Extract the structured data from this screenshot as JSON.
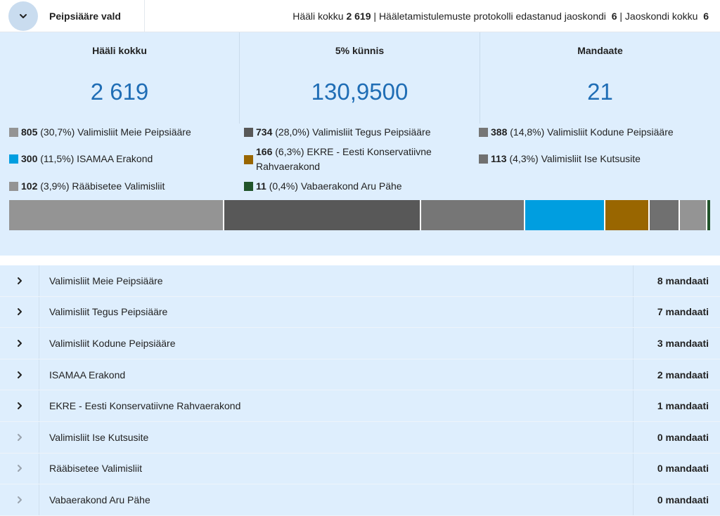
{
  "header": {
    "title": "Peipsiääre vald",
    "votes_label": "Hääli kokku",
    "votes_value": "2 619",
    "protocols_label": "Hääletamistulemuste protokolli edastanud jaoskondi",
    "protocols_value": "6",
    "districts_label": "Jaoskondi kokku",
    "districts_value": "6",
    "sep": "|"
  },
  "kpis": [
    {
      "label": "Hääli kokku",
      "value": "2 619"
    },
    {
      "label": "5% künnis",
      "value": "130,9500"
    },
    {
      "label": "Mandaate",
      "value": "21"
    }
  ],
  "legend": [
    {
      "votes": "805",
      "pct": "(30,7%)",
      "name": "Valimisliit Meie Peipsiääre",
      "color": "#949494"
    },
    {
      "votes": "734",
      "pct": "(28,0%)",
      "name": "Valimisliit Tegus Peipsiääre",
      "color": "#585858"
    },
    {
      "votes": "388",
      "pct": "(14,8%)",
      "name": "Valimisliit Kodune Peipsiääre",
      "color": "#767676"
    },
    {
      "votes": "300",
      "pct": "(11,5%)",
      "name": "ISAMAA Erakond",
      "color": "#009ee0"
    },
    {
      "votes": "166",
      "pct": "(6,3%)",
      "name": "EKRE - Eesti Konservatiivne Rahvaerakond",
      "color": "#996600"
    },
    {
      "votes": "113",
      "pct": "(4,3%)",
      "name": "Valimisliit Ise Kutsusite",
      "color": "#707070"
    },
    {
      "votes": "102",
      "pct": "(3,9%)",
      "name": "Rääbisetee Valimisliit",
      "color": "#949494"
    },
    {
      "votes": "11",
      "pct": "(0,4%)",
      "name": "Vabaerakond Aru Pähe",
      "color": "#21542a"
    }
  ],
  "bar_shares": [
    805,
    734,
    388,
    300,
    166,
    113,
    102,
    11
  ],
  "results": [
    {
      "name": "Valimisliit Meie Peipsiääre",
      "seats": "8 mandaati",
      "active": true
    },
    {
      "name": "Valimisliit Tegus Peipsiääre",
      "seats": "7 mandaati",
      "active": true
    },
    {
      "name": "Valimisliit Kodune Peipsiääre",
      "seats": "3 mandaati",
      "active": true
    },
    {
      "name": "ISAMAA Erakond",
      "seats": "2 mandaati",
      "active": true
    },
    {
      "name": "EKRE - Eesti Konservatiivne Rahvaerakond",
      "seats": "1 mandaati",
      "active": true
    },
    {
      "name": "Valimisliit Ise Kutsusite",
      "seats": "0 mandaati",
      "active": false
    },
    {
      "name": "Rääbisetee Valimisliit",
      "seats": "0 mandaati",
      "active": false
    },
    {
      "name": "Vabaerakond Aru Pähe",
      "seats": "0 mandaati",
      "active": false
    }
  ],
  "icons": {
    "collapse": "chevron-down-icon",
    "expand": "chevron-right-icon"
  }
}
